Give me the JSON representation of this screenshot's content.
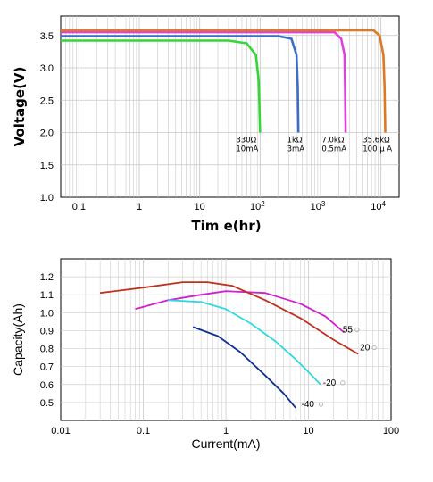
{
  "chart_data": [
    {
      "type": "line",
      "xlabel": "Tim e(hr)",
      "ylabel": "Voltage(V)",
      "xscale": "log",
      "xlim": [
        0.05,
        20000
      ],
      "ylim": [
        1.0,
        3.8
      ],
      "grid": true,
      "x_ticks": [
        {
          "value": 0.1,
          "label": "0.1"
        },
        {
          "value": 1,
          "label": "1"
        },
        {
          "value": 10,
          "label": "10"
        },
        {
          "value": 100,
          "label": "10",
          "sup": "2"
        },
        {
          "value": 1000,
          "label": "10",
          "sup": "3"
        },
        {
          "value": 10000,
          "label": "10",
          "sup": "4"
        }
      ],
      "y_ticks": [
        "1.0",
        "1.5",
        "2.0",
        "2.5",
        "3.0",
        "3.5"
      ],
      "series": [
        {
          "color": "#33d633",
          "points": [
            [
              0.05,
              3.42
            ],
            [
              30,
              3.42
            ],
            [
              60,
              3.38
            ],
            [
              85,
              3.2
            ],
            [
              95,
              2.8
            ],
            [
              100,
              2.0
            ]
          ]
        },
        {
          "color": "#3a6ec8",
          "points": [
            [
              0.05,
              3.49
            ],
            [
              200,
              3.49
            ],
            [
              330,
              3.45
            ],
            [
              400,
              3.2
            ],
            [
              420,
              2.7
            ],
            [
              430,
              2.0
            ]
          ]
        },
        {
          "color": "#e040e0",
          "points": [
            [
              0.05,
              3.55
            ],
            [
              1700,
              3.55
            ],
            [
              2200,
              3.45
            ],
            [
              2500,
              3.2
            ],
            [
              2550,
              2.7
            ],
            [
              2600,
              2.0
            ]
          ]
        },
        {
          "color": "#e07820",
          "points": [
            [
              0.05,
              3.58
            ],
            [
              7500,
              3.58
            ],
            [
              9500,
              3.5
            ],
            [
              11000,
              3.2
            ],
            [
              11500,
              2.7
            ],
            [
              11800,
              2.0
            ]
          ]
        }
      ],
      "annotations": [
        {
          "lines": [
            "330Ω",
            "10mA"
          ],
          "x": 40,
          "y": 1.85
        },
        {
          "lines": [
            "1kΩ",
            "3mA"
          ],
          "x": 280,
          "y": 1.85
        },
        {
          "lines": [
            "7.0kΩ",
            "0.5mA"
          ],
          "x": 1050,
          "y": 1.85
        },
        {
          "lines": [
            "35.6kΩ",
            "100 μ A"
          ],
          "x": 5000,
          "y": 1.85
        }
      ]
    },
    {
      "type": "line",
      "xlabel": "Current(mA)",
      "ylabel": "Capacity(Ah)",
      "xscale": "log",
      "xlim": [
        0.01,
        100
      ],
      "ylim": [
        0.4,
        1.3
      ],
      "grid": true,
      "x_ticks": [
        {
          "value": 0.01,
          "label": "0.01"
        },
        {
          "value": 0.1,
          "label": "0.1"
        },
        {
          "value": 1,
          "label": "1"
        },
        {
          "value": 10,
          "label": "10"
        },
        {
          "value": 100,
          "label": "100"
        }
      ],
      "y_ticks": [
        "0.5",
        "0.6",
        "0.7",
        "0.8",
        "0.9",
        "1.0",
        "1.1",
        "1.2"
      ],
      "series": [
        {
          "name": "55",
          "color": "#d020d0",
          "points": [
            [
              0.08,
              1.02
            ],
            [
              0.2,
              1.07
            ],
            [
              0.5,
              1.1
            ],
            [
              1,
              1.12
            ],
            [
              3,
              1.11
            ],
            [
              8,
              1.05
            ],
            [
              16,
              0.98
            ],
            [
              27,
              0.89
            ]
          ]
        },
        {
          "name": "20",
          "color": "#c03020",
          "points": [
            [
              0.03,
              1.11
            ],
            [
              0.1,
              1.14
            ],
            [
              0.3,
              1.17
            ],
            [
              0.6,
              1.17
            ],
            [
              1.2,
              1.15
            ],
            [
              3,
              1.07
            ],
            [
              8,
              0.97
            ],
            [
              20,
              0.85
            ],
            [
              40,
              0.77
            ]
          ]
        },
        {
          "name": "-20",
          "color": "#30d8e0",
          "points": [
            [
              0.2,
              1.07
            ],
            [
              0.5,
              1.06
            ],
            [
              1,
              1.02
            ],
            [
              2,
              0.94
            ],
            [
              4,
              0.84
            ],
            [
              7,
              0.74
            ],
            [
              10,
              0.67
            ],
            [
              14,
              0.6
            ]
          ]
        },
        {
          "name": "-40",
          "color": "#103090",
          "points": [
            [
              0.4,
              0.92
            ],
            [
              0.8,
              0.87
            ],
            [
              1.5,
              0.78
            ],
            [
              3,
              0.65
            ],
            [
              5,
              0.55
            ],
            [
              7,
              0.47
            ]
          ]
        }
      ],
      "annotations": [
        {
          "text": "55",
          "x": 26,
          "y": 0.89
        },
        {
          "text": "20",
          "x": 42,
          "y": 0.79
        },
        {
          "text": "-20",
          "x": 15,
          "y": 0.595
        },
        {
          "text": "-40",
          "x": 8.2,
          "y": 0.475
        }
      ]
    }
  ]
}
